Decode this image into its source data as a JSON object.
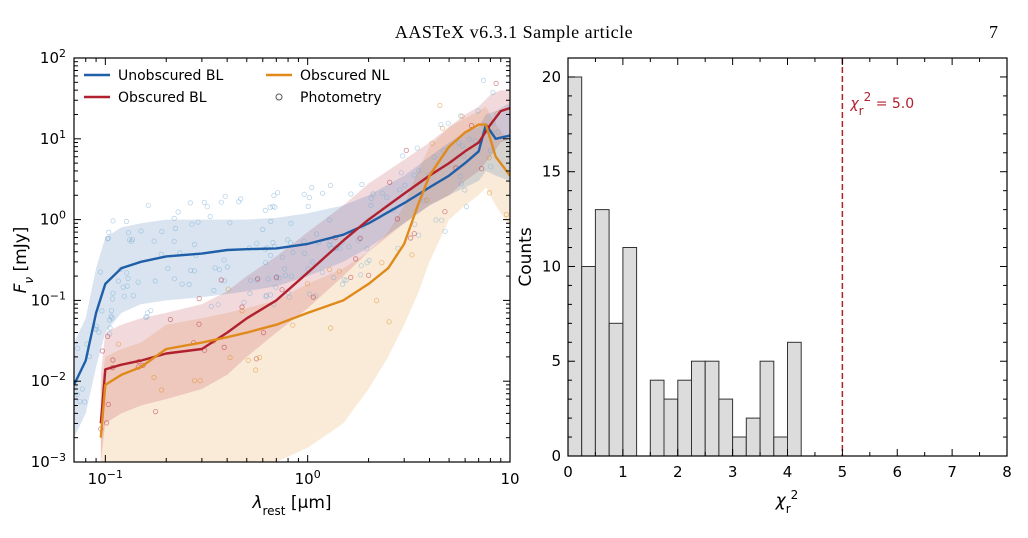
{
  "header": {
    "running_head": "AASTeX v6.3.1 Sample article",
    "page_number": "7"
  },
  "colors": {
    "unobscured_bl": "#1f5fa8",
    "obscured_bl": "#b0202e",
    "obscured_nl": "#e08a1c",
    "photometry": "#7aaed6",
    "histogram_fill": "#dcdcdc",
    "threshold_line": "#b0202e"
  },
  "chart_data": [
    {
      "type": "line",
      "xlabel": "λrest [μm]",
      "ylabel": "Fν [mJy]",
      "xscale": "log",
      "yscale": "log",
      "xlim": [
        0.07,
        10
      ],
      "ylim": [
        0.001,
        100
      ],
      "x_ticks": [
        {
          "value": 0.1,
          "base": "10",
          "exp": "−1"
        },
        {
          "value": 1,
          "base": "10",
          "exp": "0"
        },
        {
          "value": 10,
          "base": "10",
          "exp": ""
        }
      ],
      "y_ticks": [
        {
          "value": 0.001,
          "base": "10",
          "exp": "−3"
        },
        {
          "value": 0.01,
          "base": "10",
          "exp": "−2"
        },
        {
          "value": 0.1,
          "base": "10",
          "exp": "−1"
        },
        {
          "value": 1,
          "base": "10",
          "exp": "0"
        },
        {
          "value": 10,
          "base": "10",
          "exp": "1"
        },
        {
          "value": 100,
          "base": "10",
          "exp": "2"
        }
      ],
      "legend": {
        "placement": "top-left",
        "entries": [
          "Unobscured BL",
          "Obscured NL",
          "Obscured BL",
          "Photometry"
        ]
      },
      "series": [
        {
          "name": "Unobscured BL",
          "x": [
            0.07,
            0.08,
            0.09,
            0.1,
            0.12,
            0.15,
            0.2,
            0.3,
            0.4,
            0.5,
            0.7,
            1.0,
            1.5,
            2.0,
            3.0,
            4.0,
            5.0,
            6.0,
            7.0,
            7.6,
            8.5,
            10.0
          ],
          "y": [
            0.009,
            0.018,
            0.07,
            0.16,
            0.25,
            0.3,
            0.35,
            0.38,
            0.42,
            0.43,
            0.44,
            0.5,
            0.65,
            0.9,
            1.6,
            2.5,
            3.5,
            5.0,
            7.0,
            15.0,
            10.0,
            11.0
          ],
          "band_low": [
            0.002,
            0.004,
            0.015,
            0.04,
            0.07,
            0.09,
            0.1,
            0.11,
            0.12,
            0.13,
            0.15,
            0.2,
            0.3,
            0.45,
            0.9,
            1.5,
            2.0,
            2.5,
            3.0,
            4.0,
            3.5,
            3.0
          ],
          "band_high": [
            0.03,
            0.06,
            0.25,
            0.6,
            0.8,
            0.9,
            1.0,
            1.0,
            1.0,
            1.0,
            1.05,
            1.2,
            1.5,
            2.0,
            3.5,
            6.0,
            9.0,
            12.0,
            14.0,
            20.0,
            22.0,
            28.0
          ]
        },
        {
          "name": "Obscured BL",
          "x": [
            0.095,
            0.1,
            0.12,
            0.15,
            0.2,
            0.3,
            0.4,
            0.5,
            0.7,
            1.0,
            1.5,
            2.0,
            3.0,
            4.0,
            5.0,
            6.0,
            7.0,
            8.0,
            9.0,
            10.0
          ],
          "y": [
            0.003,
            0.014,
            0.016,
            0.018,
            0.022,
            0.025,
            0.04,
            0.06,
            0.1,
            0.22,
            0.55,
            1.0,
            2.1,
            3.5,
            5.0,
            7.0,
            9.0,
            15.0,
            22.0,
            24.0
          ],
          "band_low": [
            0.001,
            0.003,
            0.004,
            0.005,
            0.006,
            0.008,
            0.012,
            0.02,
            0.04,
            0.08,
            0.2,
            0.4,
            0.9,
            1.5,
            2.0,
            3.0,
            4.0,
            6.0,
            9.0,
            10.0
          ],
          "band_high": [
            0.012,
            0.04,
            0.05,
            0.06,
            0.07,
            0.09,
            0.13,
            0.2,
            0.35,
            0.7,
            1.5,
            2.8,
            5.5,
            9.0,
            14.0,
            20.0,
            25.0,
            35.0,
            40.0,
            40.0
          ]
        },
        {
          "name": "Obscured NL",
          "x": [
            0.095,
            0.1,
            0.12,
            0.15,
            0.2,
            0.3,
            0.4,
            0.5,
            0.7,
            1.0,
            1.5,
            2.0,
            2.5,
            3.0,
            3.5,
            4.0,
            5.0,
            6.0,
            7.0,
            7.6,
            8.5,
            10.0
          ],
          "y": [
            0.002,
            0.009,
            0.012,
            0.015,
            0.025,
            0.03,
            0.035,
            0.04,
            0.05,
            0.07,
            0.1,
            0.16,
            0.25,
            0.5,
            1.5,
            3.5,
            8.0,
            12.0,
            15.0,
            15.0,
            6.0,
            3.5
          ],
          "band_low": [
            0.001,
            0.001,
            0.001,
            0.001,
            0.001,
            0.001,
            0.001,
            0.001,
            0.001,
            0.0015,
            0.003,
            0.008,
            0.02,
            0.05,
            0.12,
            0.3,
            1.0,
            1.5,
            2.0,
            2.5,
            1.5,
            0.8
          ],
          "band_high": [
            0.008,
            0.02,
            0.025,
            0.03,
            0.05,
            0.06,
            0.07,
            0.08,
            0.1,
            0.16,
            0.25,
            0.4,
            0.7,
            1.5,
            4.0,
            8.0,
            14.0,
            18.0,
            22.0,
            25.0,
            15.0,
            9.0
          ]
        }
      ]
    },
    {
      "type": "bar",
      "xlabel": "χr2",
      "ylabel": "Counts",
      "xlim": [
        0,
        8
      ],
      "ylim": [
        0,
        21
      ],
      "x_ticks": [
        "0",
        "1",
        "2",
        "3",
        "4",
        "5",
        "6",
        "7",
        "8"
      ],
      "y_ticks": [
        "0",
        "5",
        "10",
        "15",
        "20"
      ],
      "bin_width": 0.25,
      "bin_starts": [
        0,
        0.25,
        0.5,
        0.75,
        1.0,
        1.25,
        1.5,
        1.75,
        2.0,
        2.25,
        2.5,
        2.75,
        3.0,
        3.25,
        3.5,
        3.75,
        4.0,
        4.25,
        4.5,
        4.75
      ],
      "values": [
        20,
        10,
        13,
        7,
        11,
        0,
        4,
        3,
        4,
        5,
        5,
        3,
        1,
        2,
        5,
        1,
        6,
        0,
        0,
        0
      ],
      "threshold": {
        "value": 5.0,
        "label": "χr2 = 5.0"
      }
    }
  ]
}
